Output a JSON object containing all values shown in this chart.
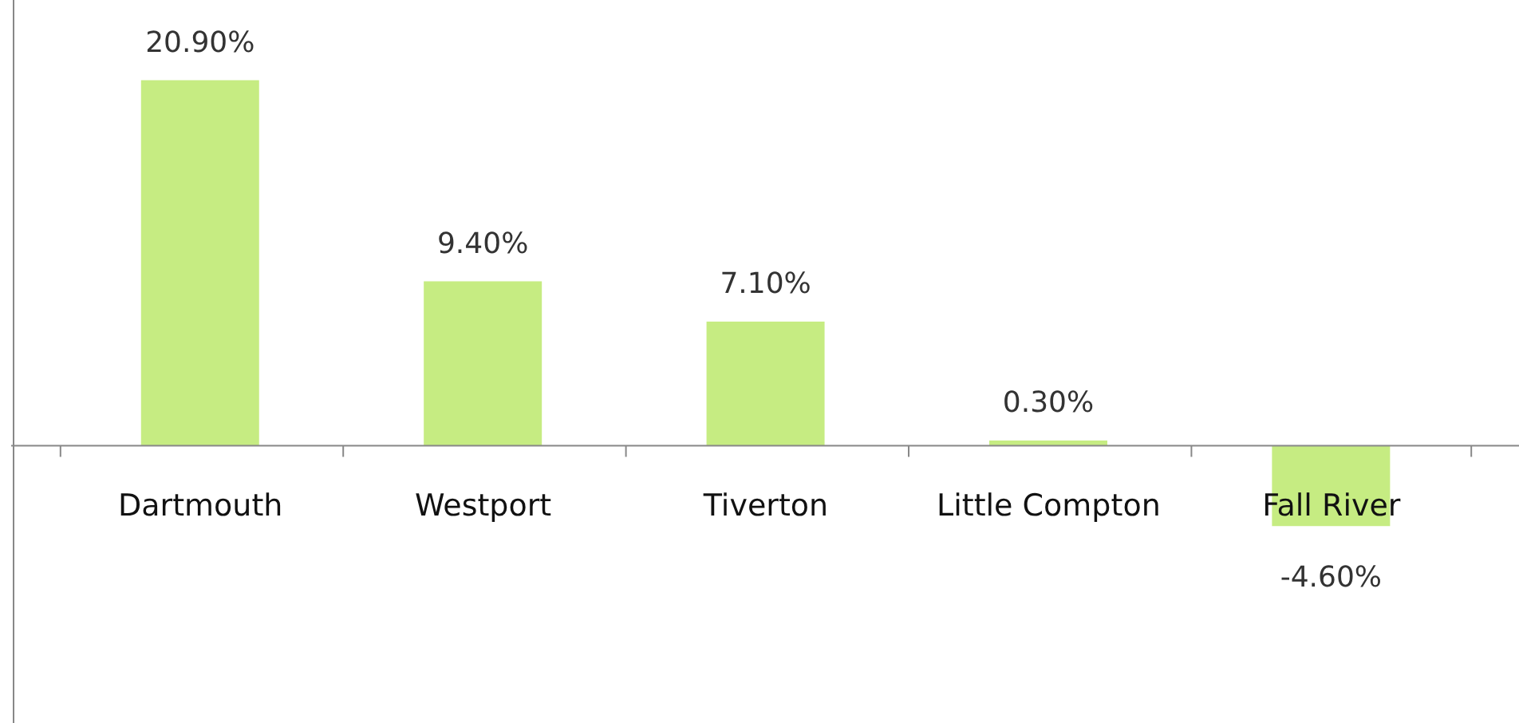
{
  "chart_data": {
    "type": "bar",
    "categories": [
      "Dartmouth",
      "Westport",
      "Tiverton",
      "Little Compton",
      "Fall River"
    ],
    "values": [
      20.9,
      9.4,
      7.1,
      0.3,
      -4.6
    ],
    "value_labels": [
      "20.90%",
      "9.40%",
      "7.10%",
      "0.30%",
      "-4.60%"
    ],
    "color": "#c6ec82"
  }
}
